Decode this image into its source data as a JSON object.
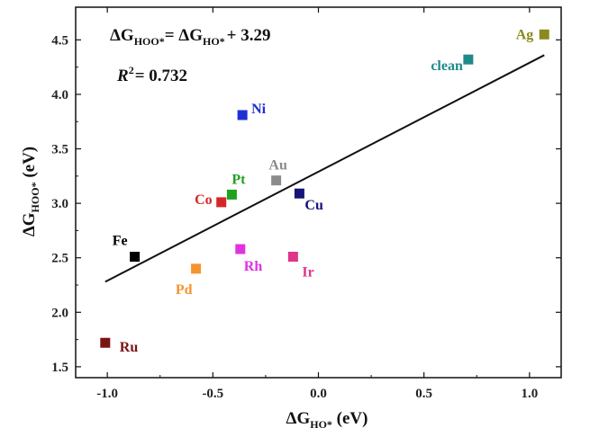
{
  "chart_data": {
    "type": "scatter",
    "title": "",
    "xlabel": {
      "main": "ΔG",
      "sub": "HO*",
      "unit": " (eV)"
    },
    "ylabel": {
      "main": "ΔG",
      "sub": "HOO*",
      "unit": " (eV)"
    },
    "xlim": [
      -1.15,
      1.15
    ],
    "ylim": [
      1.4,
      4.8
    ],
    "xticks": [
      -1.0,
      -0.5,
      0.0,
      0.5,
      1.0
    ],
    "xtick_labels": [
      "-1.0",
      "-0.5",
      "0.0",
      "0.5",
      "1.0"
    ],
    "yticks": [
      1.5,
      2.0,
      2.5,
      3.0,
      3.5,
      4.0,
      4.5
    ],
    "ytick_labels": [
      "1.5",
      "2.0",
      "2.5",
      "3.0",
      "3.5",
      "4.0",
      "4.5"
    ],
    "grid": false,
    "points": [
      {
        "label": "Ag",
        "x": 1.07,
        "y": 4.55,
        "color": "#8a8a1f"
      },
      {
        "label": "clean",
        "x": 0.71,
        "y": 4.32,
        "color": "#1f8a8a"
      },
      {
        "label": "Ni",
        "x": -0.36,
        "y": 3.81,
        "color": "#1f2fd6"
      },
      {
        "label": "Au",
        "x": -0.2,
        "y": 3.21,
        "color": "#8c8c8c"
      },
      {
        "label": "Cu",
        "x": -0.09,
        "y": 3.09,
        "color": "#14147a"
      },
      {
        "label": "Pt",
        "x": -0.41,
        "y": 3.08,
        "color": "#1fa21f"
      },
      {
        "label": "Co",
        "x": -0.46,
        "y": 3.01,
        "color": "#d62728"
      },
      {
        "label": "Rh",
        "x": -0.37,
        "y": 2.58,
        "color": "#e033e0"
      },
      {
        "label": "Ir",
        "x": -0.12,
        "y": 2.51,
        "color": "#e0338a"
      },
      {
        "label": "Fe",
        "x": -0.87,
        "y": 2.51,
        "color": "#000000"
      },
      {
        "label": "Pd",
        "x": -0.58,
        "y": 2.4,
        "color": "#f5942e"
      },
      {
        "label": "Ru",
        "x": -1.01,
        "y": 1.72,
        "color": "#7a1414"
      }
    ],
    "fit": {
      "slope": 1.0,
      "intercept": 3.29,
      "x_range": [
        -1.01,
        1.07
      ],
      "equation": {
        "lhs": "ΔG",
        "lhs_sub": "HOO*",
        "mid": "= ΔG",
        "mid_sub": "HO*",
        "rhs": "+ 3.29"
      },
      "r2": {
        "prefix": "R",
        "sup": "2",
        "value": "= 0.732"
      }
    }
  }
}
